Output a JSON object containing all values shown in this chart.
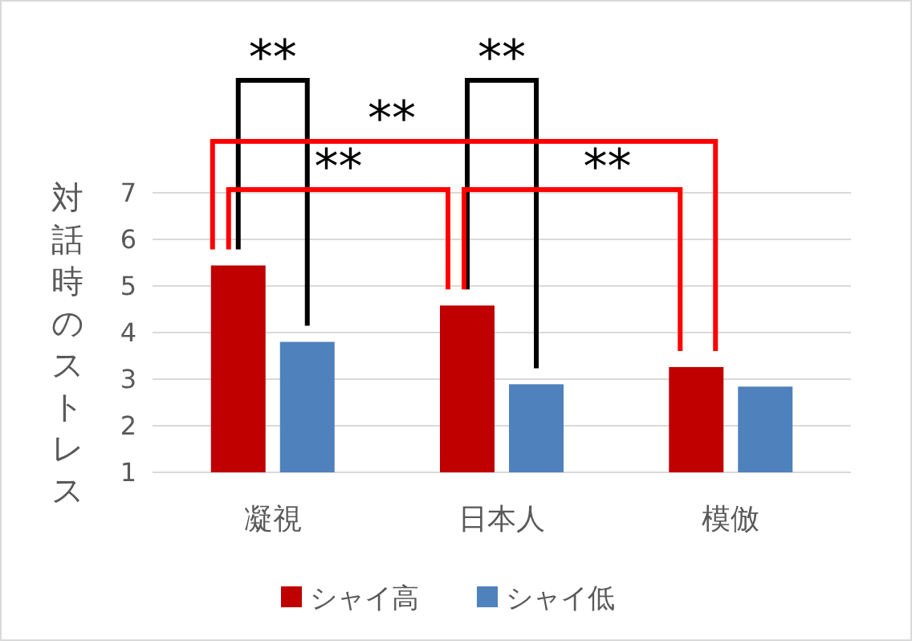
{
  "chart_data": {
    "type": "bar",
    "ylabel": "対話時のストレス",
    "categories": [
      "凝視",
      "日本人",
      "模倣"
    ],
    "series": [
      {
        "name": "シャイ高",
        "color": "#c00000",
        "values": [
          5.44,
          4.58,
          3.26
        ]
      },
      {
        "name": "シャイ低",
        "color": "#4f81bd",
        "values": [
          3.8,
          2.89,
          2.84
        ]
      }
    ],
    "ylim": [
      1,
      7
    ],
    "yticks": [
      1,
      2,
      3,
      4,
      5,
      6,
      7
    ],
    "grid": "y",
    "legend": "bottom",
    "annotations": [
      "**",
      "**",
      "**",
      "**",
      "**"
    ]
  }
}
